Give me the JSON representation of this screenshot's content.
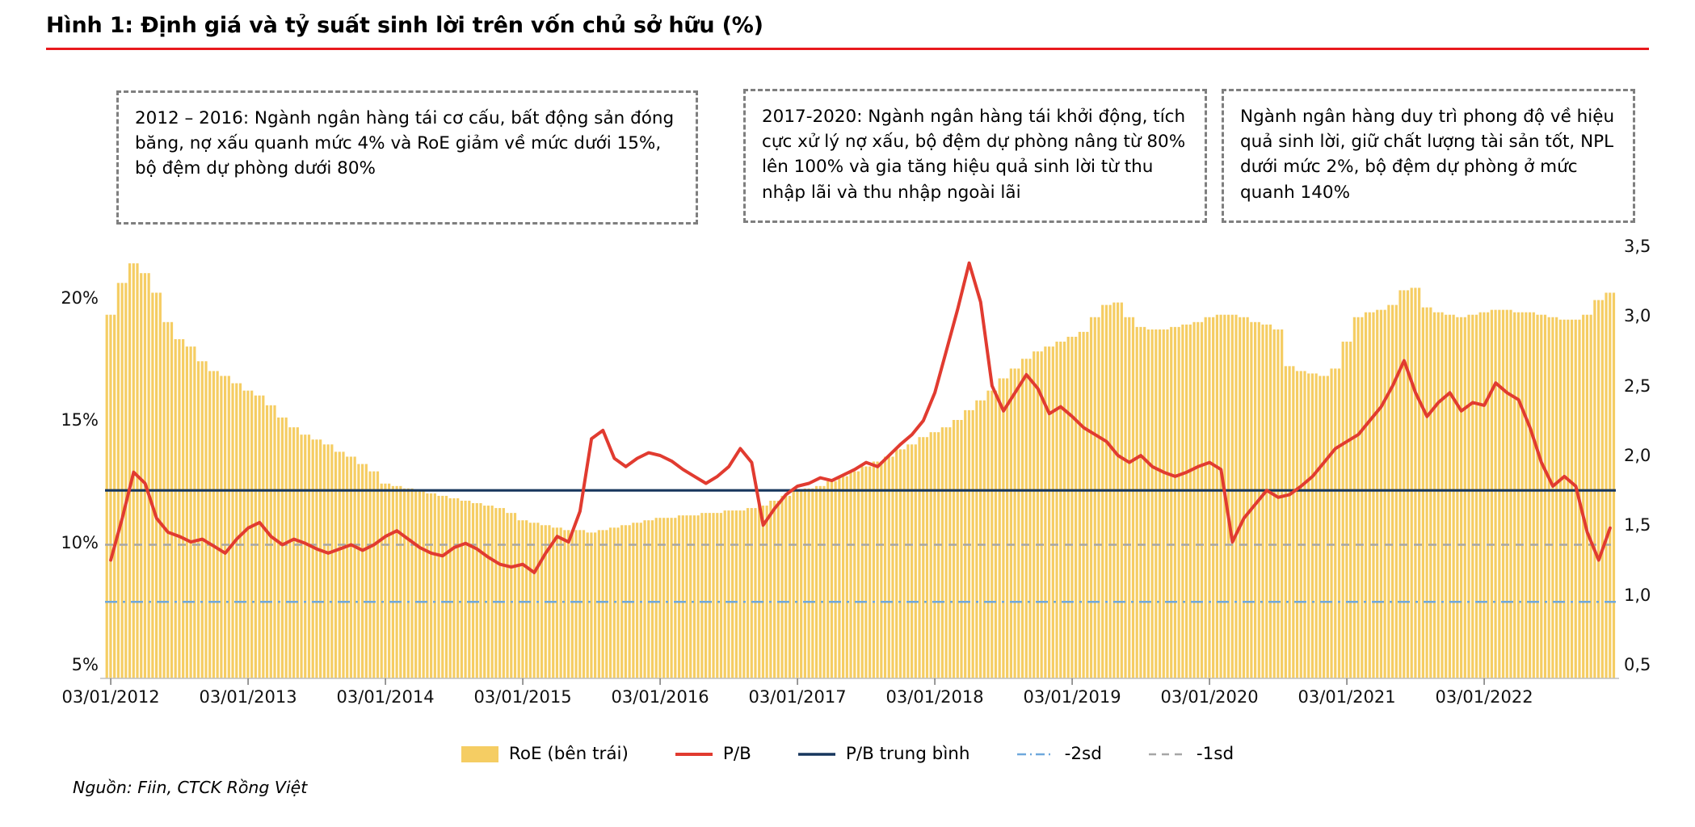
{
  "title": "Hình 1: Định giá và tỷ suất sinh lời trên vốn chủ sở hữu (%)",
  "annotations": {
    "box1": "2012 – 2016: Ngành ngân hàng tái cơ cấu, bất động sản đóng băng, nợ xấu quanh mức 4% và RoE giảm về mức dưới 15%, bộ đệm dự phòng dưới 80%",
    "box2": "2017-2020: Ngành ngân hàng tái khởi động, tích cực xử lý nợ xấu, bộ đệm dự phòng nâng từ 80% lên 100% và gia tăng hiệu quả sinh lời từ thu nhập lãi và thu nhập ngoài lãi",
    "box3": "Ngành ngân hàng duy trì phong độ về hiệu quả sinh lời, giữ chất lượng tài sản tốt, NPL dưới mức 2%, bộ đệm dự phòng ở mức quanh 140%"
  },
  "source": "Nguồn: Fiin, CTCK Rồng Việt",
  "colors": {
    "bar": "#F5CD63",
    "pb_line": "#E13B30",
    "pb_avg": "#17365D",
    "sd2": "#6FA8DC",
    "sd1": "#A6A6A6",
    "axis": "#BFBFBF",
    "tick": "#808080",
    "title_rule": "#E8191D"
  },
  "legend": [
    {
      "label": "RoE (bên trái)",
      "swatch": "bar"
    },
    {
      "label": "P/B",
      "swatch": "line"
    },
    {
      "label": "P/B trung bình",
      "swatch": "line"
    },
    {
      "label": "-2sd",
      "swatch": "dashdot"
    },
    {
      "label": "-1sd",
      "swatch": "dashed"
    }
  ],
  "chart_data": {
    "type": "combo-bar-line",
    "x": {
      "start": "2012-01",
      "end": "2022-12",
      "frequency": "monthly",
      "points": 132
    },
    "x_axis": {
      "tick_every_months": 12,
      "labels": [
        "03/01/2012",
        "03/01/2013",
        "03/01/2014",
        "03/01/2015",
        "03/01/2016",
        "03/01/2017",
        "03/01/2018",
        "03/01/2019",
        "03/01/2020",
        "03/01/2021",
        "03/01/2022"
      ]
    },
    "left_axis": {
      "title": "RoE (%)",
      "ticks": [
        5,
        10,
        15,
        20
      ],
      "labels": [
        "5%",
        "10%",
        "15%",
        "20%"
      ],
      "range": [
        4.4,
        22.3
      ]
    },
    "right_axis": {
      "title": "P/B",
      "ticks": [
        0.5,
        1.0,
        1.5,
        2.0,
        2.5,
        3.0,
        3.5
      ],
      "labels": [
        "0,5",
        "1,0",
        "1,5",
        "2,0",
        "2,5",
        "3,0",
        "3,5"
      ],
      "range": [
        0.4,
        3.53
      ]
    },
    "series": [
      {
        "name": "RoE (bên trái)",
        "type": "bar",
        "axis": "left",
        "values": [
          19.3,
          20.6,
          21.4,
          21.0,
          20.2,
          19.0,
          18.3,
          18.0,
          17.4,
          17.0,
          16.8,
          16.5,
          16.2,
          16.0,
          15.6,
          15.1,
          14.7,
          14.4,
          14.2,
          14.0,
          13.7,
          13.5,
          13.2,
          12.9,
          12.4,
          12.3,
          12.2,
          12.1,
          12.0,
          11.9,
          11.8,
          11.7,
          11.6,
          11.5,
          11.4,
          11.2,
          10.9,
          10.8,
          10.7,
          10.6,
          10.5,
          10.5,
          10.4,
          10.5,
          10.6,
          10.7,
          10.8,
          10.9,
          11.0,
          11.0,
          11.1,
          11.1,
          11.2,
          11.2,
          11.3,
          11.3,
          11.4,
          11.5,
          11.7,
          11.9,
          12.1,
          12.2,
          12.3,
          12.5,
          12.7,
          12.9,
          13.1,
          13.3,
          13.5,
          13.8,
          14.0,
          14.3,
          14.5,
          14.7,
          15.0,
          15.4,
          15.8,
          16.2,
          16.7,
          17.1,
          17.5,
          17.8,
          18.0,
          18.2,
          18.4,
          18.6,
          19.2,
          19.7,
          19.8,
          19.2,
          18.8,
          18.7,
          18.7,
          18.8,
          18.9,
          19.0,
          19.2,
          19.3,
          19.3,
          19.2,
          19.0,
          18.9,
          18.7,
          17.2,
          17.0,
          16.9,
          16.8,
          17.1,
          18.2,
          19.2,
          19.4,
          19.5,
          19.7,
          20.3,
          20.4,
          19.6,
          19.4,
          19.3,
          19.2,
          19.3,
          19.4,
          19.5,
          19.5,
          19.4,
          19.4,
          19.3,
          19.2,
          19.1,
          19.1,
          19.3,
          19.9,
          20.2
        ]
      },
      {
        "name": "P/B",
        "type": "line",
        "axis": "right",
        "values": [
          1.25,
          1.55,
          1.88,
          1.8,
          1.55,
          1.45,
          1.42,
          1.38,
          1.4,
          1.35,
          1.3,
          1.4,
          1.48,
          1.52,
          1.42,
          1.36,
          1.4,
          1.37,
          1.33,
          1.3,
          1.33,
          1.36,
          1.32,
          1.36,
          1.42,
          1.46,
          1.4,
          1.34,
          1.3,
          1.28,
          1.34,
          1.37,
          1.33,
          1.27,
          1.22,
          1.2,
          1.22,
          1.16,
          1.3,
          1.42,
          1.38,
          1.6,
          2.12,
          2.18,
          1.98,
          1.92,
          1.98,
          2.02,
          2.0,
          1.96,
          1.9,
          1.85,
          1.8,
          1.85,
          1.92,
          2.05,
          1.95,
          1.5,
          1.62,
          1.72,
          1.78,
          1.8,
          1.84,
          1.82,
          1.86,
          1.9,
          1.95,
          1.92,
          2.0,
          2.08,
          2.15,
          2.25,
          2.45,
          2.75,
          3.05,
          3.38,
          3.1,
          2.5,
          2.32,
          2.45,
          2.58,
          2.48,
          2.3,
          2.35,
          2.28,
          2.2,
          2.15,
          2.1,
          2.0,
          1.95,
          2.0,
          1.92,
          1.88,
          1.85,
          1.88,
          1.92,
          1.95,
          1.9,
          1.38,
          1.55,
          1.65,
          1.75,
          1.7,
          1.72,
          1.78,
          1.85,
          1.95,
          2.05,
          2.1,
          2.15,
          2.25,
          2.35,
          2.5,
          2.68,
          2.45,
          2.28,
          2.38,
          2.45,
          2.32,
          2.38,
          2.36,
          2.52,
          2.45,
          2.4,
          2.2,
          1.95,
          1.78,
          1.85,
          1.78,
          1.45,
          1.25,
          1.48
        ]
      },
      {
        "name": "P/B trung bình",
        "type": "hline",
        "axis": "right",
        "value": 1.75,
        "style": "solid"
      },
      {
        "name": "-1sd",
        "type": "hline",
        "axis": "right",
        "value": 1.36,
        "style": "dashed"
      },
      {
        "name": "-2sd",
        "type": "hline",
        "axis": "right",
        "value": 0.95,
        "style": "dashdot"
      }
    ],
    "legend_position": "bottom",
    "grid": false
  }
}
